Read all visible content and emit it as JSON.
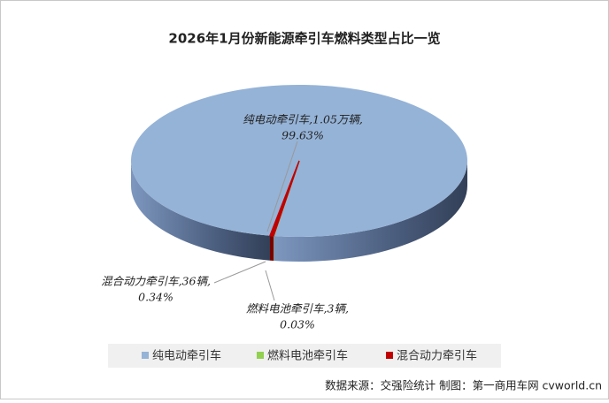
{
  "chart_data": {
    "type": "pie3d",
    "title": "2026年1月份新能源牵引车燃料类型占比一览",
    "categories": [
      "纯电动牵引车",
      "燃料电池牵引车",
      "混合动力牵引车"
    ],
    "values": [
      99.63,
      0.03,
      0.34
    ],
    "value_labels": [
      "99.63%",
      "0.03%",
      "0.34%"
    ],
    "label_texts": [
      "纯电动牵引车,1.05万辆,",
      "燃料电池牵引车,3辆,",
      "混合动力牵引车,36辆,"
    ],
    "colors": [
      "#95b3d7",
      "#92d050",
      "#c00000"
    ],
    "side_colors": [
      "#5f7597",
      "#5f8a2e",
      "#7a0000"
    ],
    "source": "数据来源：交强险统计 制图：第一商用车网 cvworld.cn"
  }
}
